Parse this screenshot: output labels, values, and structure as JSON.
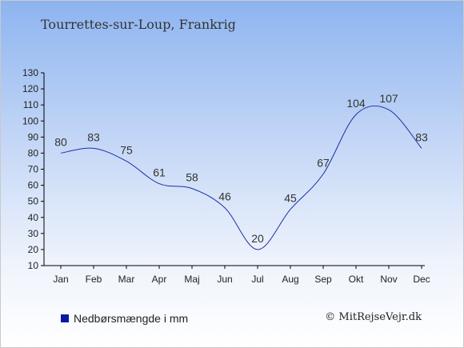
{
  "chart_data": {
    "type": "line",
    "title": "Tourrettes-sur-Loup, Frankrig",
    "categories": [
      "Jan",
      "Feb",
      "Mar",
      "Apr",
      "Maj",
      "Jun",
      "Jul",
      "Aug",
      "Sep",
      "Okt",
      "Nov",
      "Dec"
    ],
    "series": [
      {
        "name": "Nedbørsmængde i mm",
        "values": [
          80,
          83,
          75,
          61,
          58,
          46,
          20,
          45,
          67,
          104,
          107,
          83
        ]
      }
    ],
    "y_ticks": [
      10,
      20,
      30,
      40,
      50,
      60,
      70,
      80,
      90,
      100,
      110,
      120,
      130
    ],
    "ylim": [
      10,
      130
    ],
    "grid": false,
    "legend_position": "bottom-left",
    "line_color": "#1a2fa8",
    "swatch_color": "#0a1aa0"
  },
  "legend": {
    "label": "Nedbørsmængde i mm"
  },
  "credit": "© MitRejseVejr.dk"
}
